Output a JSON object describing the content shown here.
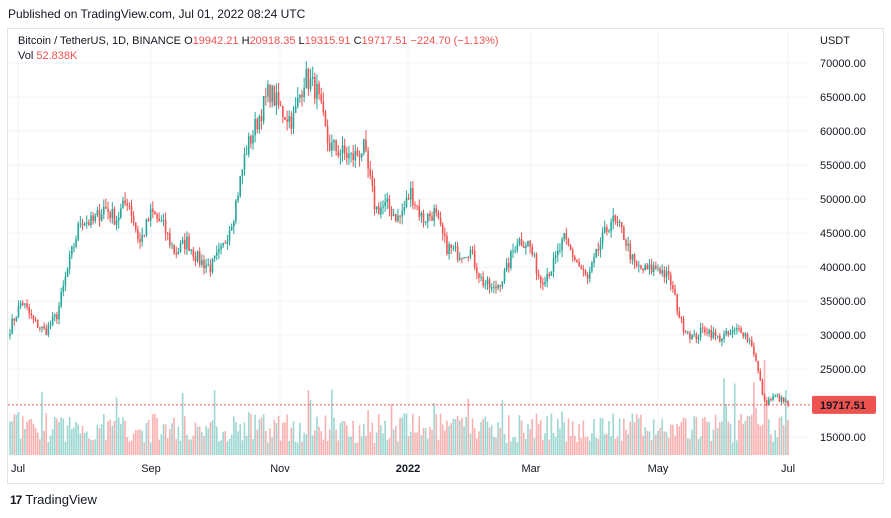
{
  "header": {
    "published": "Published on TradingView.com, Jul 01, 2022 08:24 UTC"
  },
  "legend": {
    "symbol": "Bitcoin / TetherUS, 1D, BINANCE",
    "o_label": "O",
    "o_value": "19942.21",
    "h_label": "H",
    "h_value": "20918.35",
    "l_label": "L",
    "l_value": "19315.91",
    "c_label": "C",
    "c_value": "19717.51",
    "change": "−224.70 (−1.13%)",
    "vol_label": "Vol",
    "vol_value": "52.838K"
  },
  "footer": {
    "brand": "TradingView",
    "logo_glyph": "17"
  },
  "colors": {
    "up": "#26a69a",
    "down": "#ef5350",
    "grid": "#f0f3fa",
    "price_line": "#ef5350"
  },
  "chart_data": {
    "type": "candlestick",
    "currency": "USDT",
    "ylim": [
      12500,
      72500
    ],
    "y_ticks": [
      "70000.00",
      "65000.00",
      "60000.00",
      "55000.00",
      "50000.00",
      "45000.00",
      "40000.00",
      "35000.00",
      "30000.00",
      "25000.00",
      "15000.00"
    ],
    "x_ticks": [
      "Jul",
      "Sep",
      "Nov",
      "2022",
      "Mar",
      "May",
      "Jul"
    ],
    "last_price": "19717.51",
    "last_value": 19717.51,
    "close_path": [
      31000,
      35000,
      32000,
      30500,
      33000,
      40500,
      47000,
      46500,
      48800,
      47000,
      50000,
      43500,
      48000,
      46000,
      42000,
      43800,
      41000,
      40000,
      42500,
      48000,
      57000,
      61500,
      66000,
      63000,
      61500,
      68000,
      66000,
      58000,
      57000,
      56000,
      57500,
      48500,
      49000,
      47000,
      51000,
      47000,
      48000,
      43000,
      42000,
      42500,
      38000,
      36500,
      39000,
      44000,
      43500,
      38000,
      40000,
      44000,
      41000,
      38000,
      43000,
      47000,
      45000,
      40000,
      39500,
      40000,
      38000,
      31500,
      29500,
      31000,
      29500,
      30000,
      31000,
      28500,
      20000,
      21000,
      19717.51
    ],
    "candles_count": 366,
    "volume_scale": "relative, bottom pane"
  }
}
